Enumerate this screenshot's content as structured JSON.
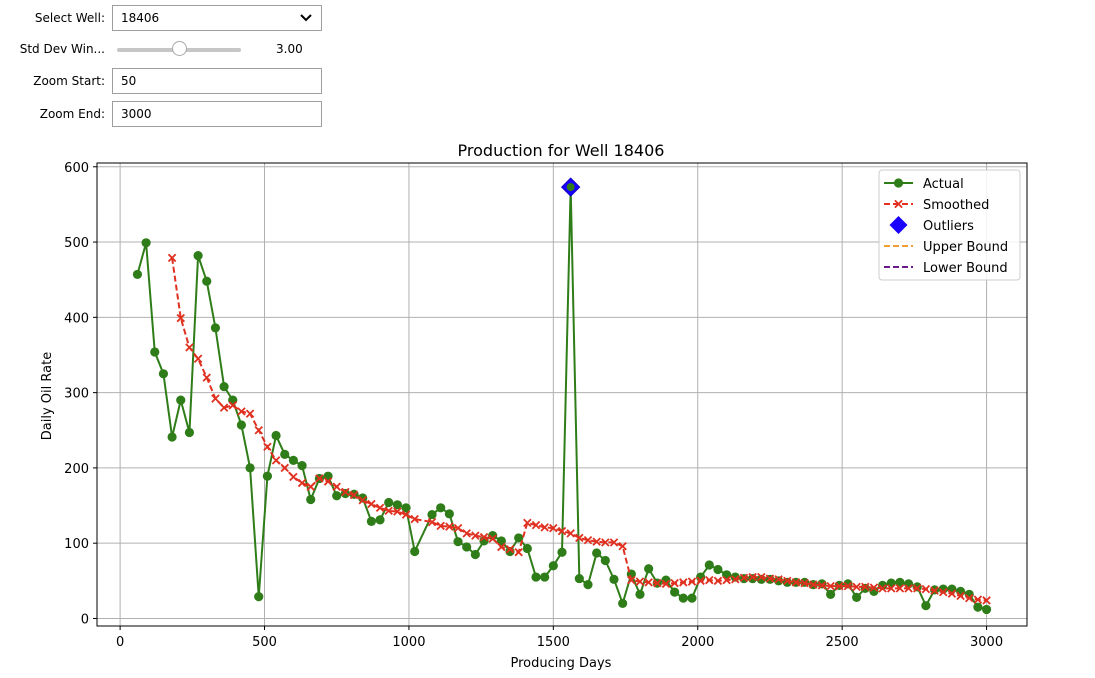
{
  "controls": {
    "well": {
      "label": "Select Well:",
      "value": "18406"
    },
    "std": {
      "label": "Std Dev Win...",
      "value": "3.00",
      "fraction": 0.5
    },
    "zoom_start": {
      "label": "Zoom Start:",
      "value": "50"
    },
    "zoom_end": {
      "label": "Zoom End:",
      "value": "3000"
    }
  },
  "chart_data": {
    "type": "line",
    "title": "Production for Well 18406",
    "xlabel": "Producing Days",
    "ylabel": "Daily Oil Rate",
    "xlim": [
      -80,
      3140
    ],
    "ylim": [
      -10,
      605
    ],
    "xticks": [
      0,
      500,
      1000,
      1500,
      2000,
      2500,
      3000
    ],
    "yticks": [
      0,
      100,
      200,
      300,
      400,
      500,
      600
    ],
    "grid": true,
    "legend_position": "top-right",
    "colors": {
      "actual": "#2e7d18",
      "smoothed": "#e03020",
      "outlier": "#1a00ff",
      "upper": "#f0a030",
      "lower": "#6a1a8a"
    },
    "series": [
      {
        "name": "Actual",
        "style": "line-marker-circle",
        "points": [
          [
            60,
            457
          ],
          [
            90,
            499
          ],
          [
            120,
            354
          ],
          [
            150,
            325
          ],
          [
            180,
            241
          ],
          [
            210,
            290
          ],
          [
            240,
            247
          ],
          [
            270,
            482
          ],
          [
            300,
            448
          ],
          [
            330,
            386
          ],
          [
            360,
            308
          ],
          [
            390,
            290
          ],
          [
            420,
            257
          ],
          [
            450,
            200
          ],
          [
            480,
            29
          ],
          [
            510,
            189
          ],
          [
            540,
            243
          ],
          [
            570,
            218
          ],
          [
            600,
            210
          ],
          [
            630,
            203
          ],
          [
            660,
            158
          ],
          [
            690,
            186
          ],
          [
            720,
            189
          ],
          [
            750,
            163
          ],
          [
            780,
            166
          ],
          [
            810,
            165
          ],
          [
            840,
            160
          ],
          [
            870,
            129
          ],
          [
            900,
            131
          ],
          [
            930,
            154
          ],
          [
            960,
            151
          ],
          [
            990,
            147
          ],
          [
            1020,
            89
          ],
          [
            1080,
            138
          ],
          [
            1110,
            147
          ],
          [
            1140,
            139
          ],
          [
            1170,
            102
          ],
          [
            1200,
            95
          ],
          [
            1230,
            85
          ],
          [
            1260,
            103
          ],
          [
            1290,
            110
          ],
          [
            1320,
            103
          ],
          [
            1350,
            89
          ],
          [
            1380,
            107
          ],
          [
            1410,
            93
          ],
          [
            1440,
            55
          ],
          [
            1470,
            55
          ],
          [
            1500,
            70
          ],
          [
            1530,
            88
          ],
          [
            1560,
            573
          ],
          [
            1590,
            53
          ],
          [
            1620,
            45
          ],
          [
            1650,
            87
          ],
          [
            1680,
            77
          ],
          [
            1710,
            52
          ],
          [
            1740,
            20
          ],
          [
            1770,
            59
          ],
          [
            1800,
            32
          ],
          [
            1830,
            66
          ],
          [
            1860,
            47
          ],
          [
            1890,
            51
          ],
          [
            1920,
            35
          ],
          [
            1950,
            27
          ],
          [
            1980,
            27
          ],
          [
            2010,
            55
          ],
          [
            2040,
            71
          ],
          [
            2070,
            65
          ],
          [
            2100,
            58
          ],
          [
            2130,
            55
          ],
          [
            2160,
            53
          ],
          [
            2190,
            53
          ],
          [
            2220,
            52
          ],
          [
            2250,
            52
          ],
          [
            2280,
            50
          ],
          [
            2310,
            48
          ],
          [
            2340,
            48
          ],
          [
            2370,
            48
          ],
          [
            2400,
            45
          ],
          [
            2430,
            46
          ],
          [
            2460,
            32
          ],
          [
            2490,
            44
          ],
          [
            2520,
            46
          ],
          [
            2550,
            28
          ],
          [
            2580,
            40
          ],
          [
            2610,
            36
          ],
          [
            2640,
            44
          ],
          [
            2670,
            47
          ],
          [
            2700,
            48
          ],
          [
            2730,
            46
          ],
          [
            2760,
            42
          ],
          [
            2790,
            17
          ],
          [
            2820,
            38
          ],
          [
            2850,
            39
          ],
          [
            2880,
            39
          ],
          [
            2910,
            36
          ],
          [
            2940,
            32
          ],
          [
            2970,
            15
          ],
          [
            3000,
            12
          ]
        ]
      },
      {
        "name": "Smoothed",
        "style": "dashed-marker-x",
        "points": [
          [
            180,
            479
          ],
          [
            210,
            399
          ],
          [
            240,
            360
          ],
          [
            270,
            345
          ],
          [
            300,
            320
          ],
          [
            330,
            292
          ],
          [
            360,
            280
          ],
          [
            390,
            283
          ],
          [
            420,
            275
          ],
          [
            450,
            272
          ],
          [
            480,
            250
          ],
          [
            510,
            228
          ],
          [
            540,
            210
          ],
          [
            570,
            200
          ],
          [
            600,
            188
          ],
          [
            630,
            180
          ],
          [
            660,
            175
          ],
          [
            690,
            186
          ],
          [
            720,
            182
          ],
          [
            750,
            175
          ],
          [
            780,
            168
          ],
          [
            810,
            164
          ],
          [
            840,
            157
          ],
          [
            870,
            152
          ],
          [
            900,
            147
          ],
          [
            930,
            143
          ],
          [
            960,
            142
          ],
          [
            990,
            138
          ],
          [
            1020,
            132
          ],
          [
            1080,
            128
          ],
          [
            1110,
            123
          ],
          [
            1140,
            122
          ],
          [
            1170,
            120
          ],
          [
            1200,
            113
          ],
          [
            1230,
            110
          ],
          [
            1260,
            108
          ],
          [
            1290,
            106
          ],
          [
            1320,
            95
          ],
          [
            1350,
            92
          ],
          [
            1380,
            88
          ],
          [
            1410,
            127
          ],
          [
            1440,
            124
          ],
          [
            1470,
            121
          ],
          [
            1500,
            120
          ],
          [
            1530,
            116
          ],
          [
            1560,
            113
          ],
          [
            1590,
            107
          ],
          [
            1620,
            104
          ],
          [
            1650,
            102
          ],
          [
            1680,
            101
          ],
          [
            1710,
            101
          ],
          [
            1740,
            96
          ],
          [
            1770,
            51
          ],
          [
            1800,
            49
          ],
          [
            1830,
            48
          ],
          [
            1860,
            47
          ],
          [
            1890,
            46
          ],
          [
            1920,
            47
          ],
          [
            1950,
            48
          ],
          [
            1980,
            49
          ],
          [
            2010,
            50
          ],
          [
            2040,
            51
          ],
          [
            2070,
            50
          ],
          [
            2100,
            51
          ],
          [
            2130,
            52
          ],
          [
            2160,
            54
          ],
          [
            2190,
            55
          ],
          [
            2220,
            55
          ],
          [
            2250,
            53
          ],
          [
            2280,
            52
          ],
          [
            2310,
            50
          ],
          [
            2340,
            48
          ],
          [
            2370,
            47
          ],
          [
            2400,
            45
          ],
          [
            2430,
            44
          ],
          [
            2460,
            43
          ],
          [
            2490,
            43
          ],
          [
            2520,
            43
          ],
          [
            2550,
            42
          ],
          [
            2580,
            42
          ],
          [
            2610,
            41
          ],
          [
            2640,
            40
          ],
          [
            2670,
            40
          ],
          [
            2700,
            40
          ],
          [
            2730,
            40
          ],
          [
            2760,
            40
          ],
          [
            2790,
            39
          ],
          [
            2820,
            37
          ],
          [
            2850,
            35
          ],
          [
            2880,
            33
          ],
          [
            2910,
            30
          ],
          [
            2940,
            27
          ],
          [
            2970,
            25
          ],
          [
            3000,
            24
          ]
        ]
      },
      {
        "name": "Outliers",
        "style": "diamond",
        "points": [
          [
            1560,
            573
          ]
        ]
      },
      {
        "name": "Upper Bound",
        "style": "dashed",
        "points": []
      },
      {
        "name": "Lower Bound",
        "style": "dashed",
        "points": []
      }
    ]
  }
}
